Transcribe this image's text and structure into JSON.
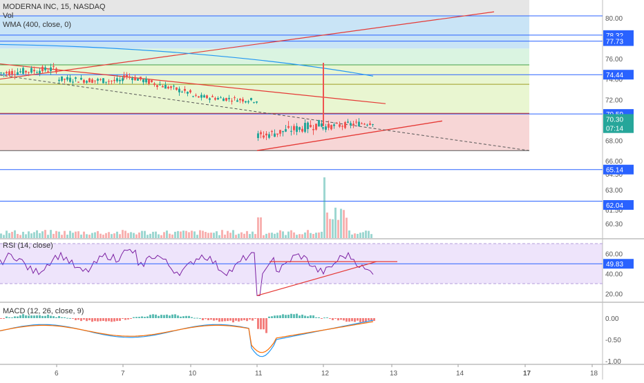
{
  "header": {
    "symbol_line": "MODERNA INC, 15, NASDAQ",
    "vol_label": "Vol",
    "wma_label": "WMA (400, close, 0)"
  },
  "colors": {
    "up": "#26a69a",
    "down": "#ef5350",
    "horizontal_line": "#2962ff",
    "trend_line": "#e53935",
    "wma": "#2196f3",
    "rsi_line": "#7b1fa2",
    "macd_line": "#2196f3",
    "signal_line": "#ff6d00",
    "zone_blue": "#bfdff5",
    "zone_green": "#d3f2dc",
    "zone_yellow": "#e5f4c9",
    "zone_red": "#f6cfcf",
    "rsi_band": "#eee4fb"
  },
  "chart_data": [
    {
      "type": "candlestick",
      "title": "MODERNA INC, 15, NASDAQ",
      "x_ticks": [
        "6",
        "7",
        "10",
        "11",
        "12",
        "13",
        "14",
        "17",
        "18"
      ],
      "y_ticks": [
        80.0,
        78.0,
        76.0,
        74.0,
        72.0,
        70.0,
        68.0,
        66.0,
        64.5,
        63.0,
        61.5,
        60.3
      ],
      "price_tags": [
        {
          "value": "78.32",
          "style": "blue"
        },
        {
          "value": "77.73",
          "style": "blue"
        },
        {
          "value": "74.44",
          "style": "blue"
        },
        {
          "value": "70.59",
          "style": "blue"
        },
        {
          "value": "70.30",
          "style": "green"
        },
        {
          "value": "07:14",
          "style": "green"
        },
        {
          "value": "65.14",
          "style": "blue"
        },
        {
          "value": "62.04",
          "style": "blue"
        }
      ],
      "horizontal_levels": [
        80.2,
        78.32,
        77.73,
        74.44,
        70.59,
        65.14,
        62.04
      ],
      "zones": [
        {
          "color": "zone_blue",
          "from": 77.0,
          "to": 80.2
        },
        {
          "color": "zone_green",
          "from": 75.4,
          "to": 77.0
        },
        {
          "color": "zone_yellow",
          "from": 70.6,
          "to": 75.4
        },
        {
          "color": "zone_red",
          "from": 67.0,
          "to": 70.6
        }
      ],
      "last_close": 70.3,
      "countdown": "07:14",
      "series_ohlc_summary": {
        "day_6_range": [
          74.0,
          75.3
        ],
        "day_7_range": [
          72.0,
          74.8
        ],
        "day_10_range": [
          71.8,
          73.5
        ],
        "day_11_range": [
          67.0,
          70.6
        ],
        "day_12_spike_high": 75.6,
        "day_12_range": [
          68.3,
          70.8
        ]
      },
      "volume_note": "volume histogram bars under price"
    },
    {
      "type": "line",
      "title": "RSI (14, close)",
      "y_ticks": [
        60.0,
        49.83,
        40.0,
        20.0
      ],
      "band": [
        30,
        70
      ],
      "last_value": "49.83"
    },
    {
      "type": "bar",
      "title": "MACD (12, 26, close, 9)",
      "y_ticks": [
        0.0,
        -0.5,
        -1.0
      ],
      "series": [
        {
          "name": "MACD"
        },
        {
          "name": "Signal"
        },
        {
          "name": "Histogram"
        }
      ]
    }
  ],
  "axis_labels": {
    "price": [
      "80.00",
      "78.00",
      "76.00",
      "74.00",
      "72.00",
      "70.00",
      "68.00",
      "66.00",
      "64.50",
      "63.00",
      "61.50",
      "60.30"
    ],
    "rsi": [
      "60.00",
      "40.00",
      "20.00"
    ],
    "macd": [
      "0.00",
      "-0.50",
      "-1.00"
    ],
    "time": [
      "6",
      "7",
      "10",
      "11",
      "12",
      "13",
      "14",
      "17",
      "18"
    ]
  },
  "rsi_legend": "RSI (14, close)",
  "macd_legend": "MACD (12, 26, close, 9)"
}
